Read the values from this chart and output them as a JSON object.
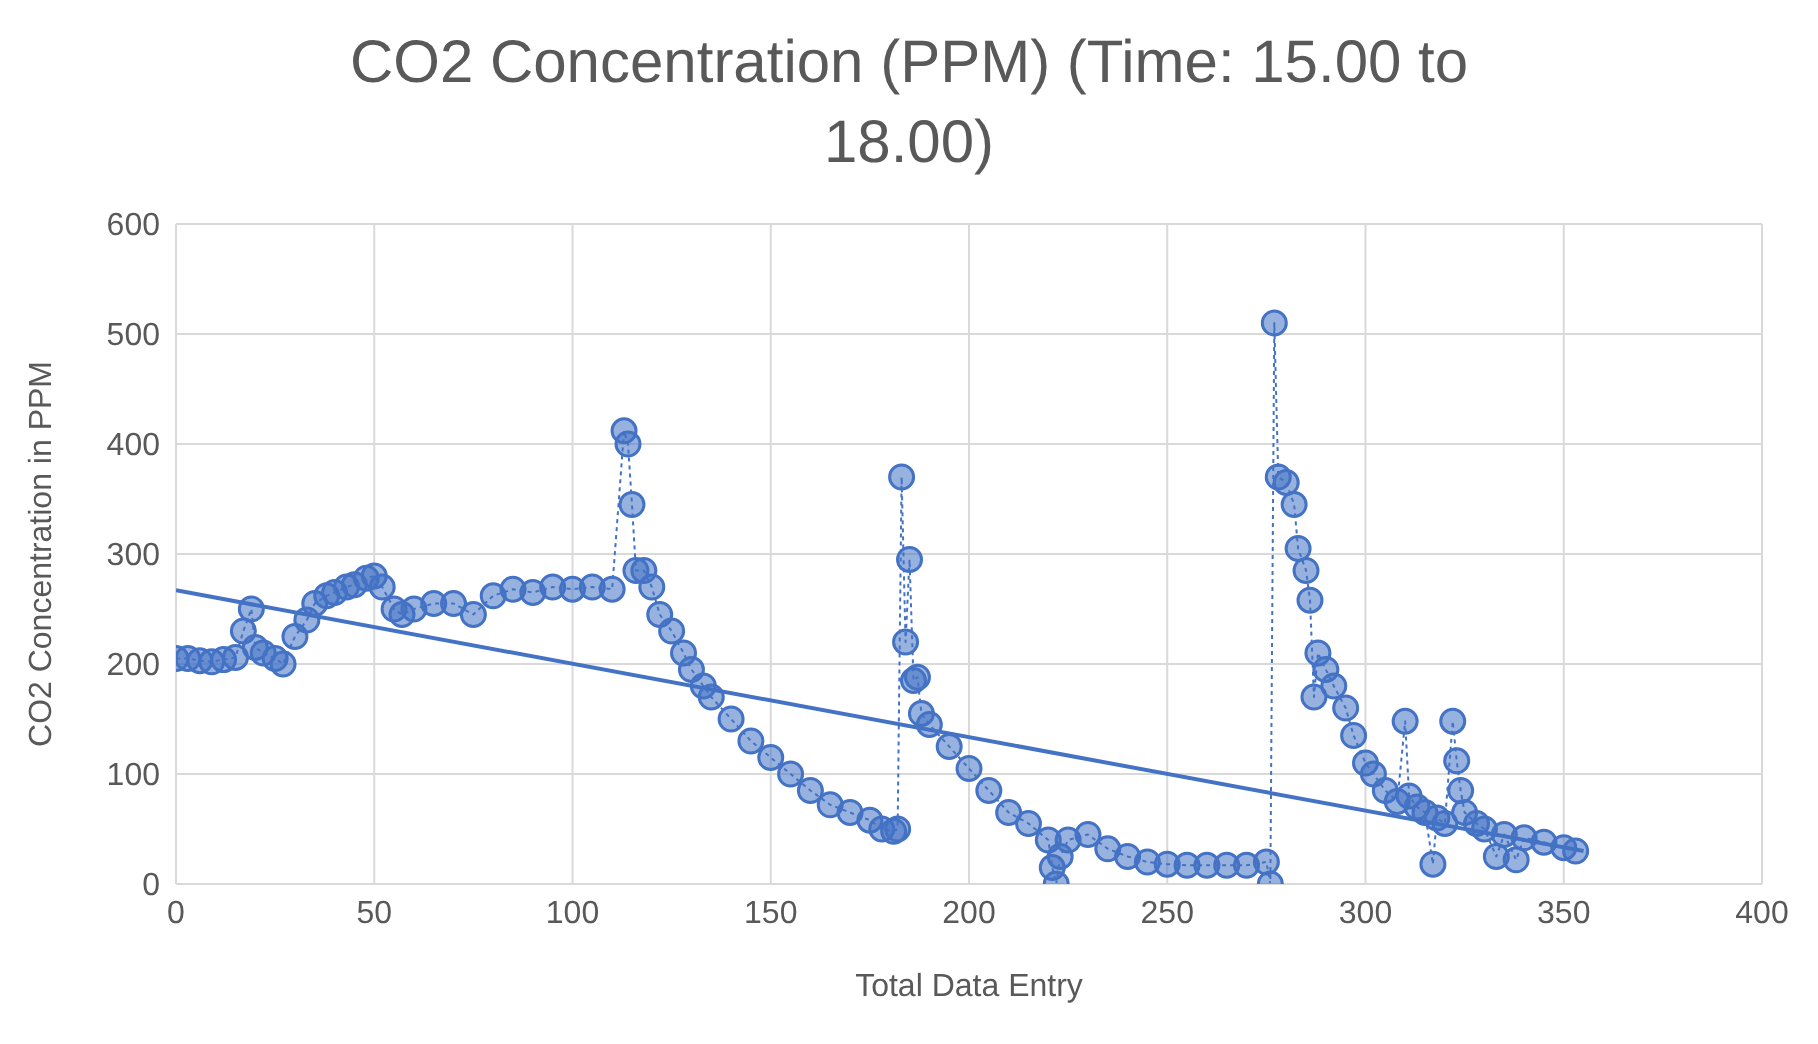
{
  "chart_data": {
    "type": "line",
    "title": "CO2 Concentration (PPM) (Time: 15.00 to 18.00)",
    "xlabel": "Total Data Entry",
    "ylabel": "CO2 Concentration in PPM",
    "xlim": [
      0,
      400
    ],
    "xticks": [
      0,
      50,
      100,
      150,
      200,
      250,
      300,
      350,
      400
    ],
    "ylim": [
      0,
      600
    ],
    "yticks": [
      0,
      100,
      200,
      300,
      400,
      500,
      600
    ],
    "grid": true,
    "series": [
      {
        "color": "#4472c4",
        "marker": "circle",
        "line_style": "dotted",
        "x": [
          0,
          3,
          6,
          9,
          12,
          15,
          17,
          19,
          20,
          22,
          25,
          27,
          30,
          33,
          35,
          38,
          40,
          43,
          45,
          48,
          50,
          52,
          55,
          57,
          60,
          65,
          70,
          75,
          80,
          85,
          90,
          95,
          100,
          105,
          110,
          113,
          114,
          115,
          116,
          118,
          120,
          122,
          125,
          128,
          130,
          133,
          135,
          140,
          145,
          150,
          155,
          160,
          165,
          170,
          175,
          178,
          181,
          182,
          183,
          184,
          185,
          186,
          187,
          188,
          190,
          195,
          200,
          205,
          210,
          215,
          220,
          221,
          222,
          223,
          225,
          230,
          235,
          240,
          245,
          250,
          255,
          260,
          265,
          270,
          275,
          276,
          277,
          278,
          280,
          282,
          283,
          285,
          286,
          287,
          288,
          290,
          292,
          295,
          297,
          300,
          302,
          305,
          308,
          310,
          311,
          313,
          315,
          317,
          318,
          320,
          322,
          323,
          324,
          325,
          328,
          330,
          333,
          335,
          338,
          340,
          345,
          350,
          353
        ],
        "values": [
          205,
          205,
          203,
          202,
          204,
          206,
          230,
          250,
          215,
          210,
          205,
          200,
          225,
          240,
          255,
          262,
          265,
          270,
          272,
          278,
          280,
          270,
          250,
          245,
          250,
          255,
          255,
          245,
          262,
          268,
          265,
          270,
          268,
          270,
          268,
          412,
          400,
          345,
          285,
          285,
          270,
          245,
          230,
          210,
          195,
          180,
          170,
          150,
          130,
          115,
          100,
          85,
          72,
          65,
          58,
          50,
          48,
          50,
          370,
          220,
          295,
          185,
          188,
          155,
          145,
          125,
          105,
          85,
          65,
          55,
          40,
          15,
          0,
          25,
          40,
          45,
          32,
          25,
          20,
          18,
          17,
          17,
          17,
          17,
          20,
          0,
          510,
          370,
          365,
          345,
          305,
          285,
          258,
          170,
          210,
          195,
          180,
          160,
          135,
          110,
          100,
          85,
          75,
          148,
          80,
          70,
          65,
          18,
          60,
          55,
          148,
          112,
          85,
          65,
          55,
          50,
          25,
          45,
          22,
          42,
          38,
          33,
          30
        ]
      },
      {
        "color": "#4472c4",
        "marker": "none",
        "line_style": "solid",
        "x": [
          0,
          355
        ],
        "values": [
          267,
          30
        ]
      }
    ]
  }
}
